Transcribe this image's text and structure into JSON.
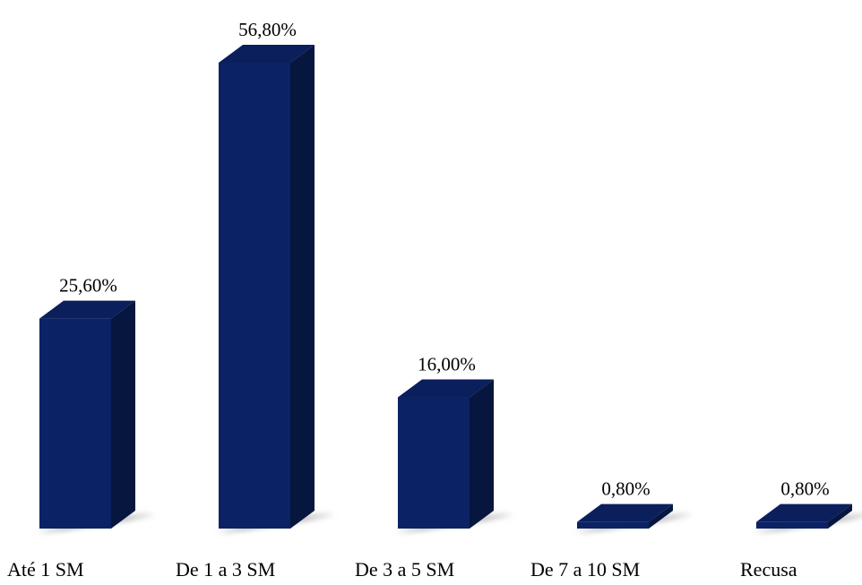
{
  "chart_data": {
    "type": "bar",
    "categories": [
      "Até 1 SM",
      "De 1 a 3 SM",
      "De 3 a 5 SM",
      "De 7 a 10 SM",
      "Recusa"
    ],
    "values": [
      25.6,
      56.8,
      16.0,
      0.8,
      0.8
    ],
    "data_labels": [
      "25,60%",
      "56,80%",
      "16,00%",
      "0,80%",
      "0,80%"
    ],
    "title": "",
    "xlabel": "",
    "ylabel": "",
    "ylim": [
      0,
      60
    ],
    "grid": false,
    "legend": "none",
    "style": "3d-column",
    "colors": {
      "front": "#0b2265",
      "side": "#06163f",
      "top": "#0a1f5c",
      "shadow": "#9a9a9a"
    }
  }
}
